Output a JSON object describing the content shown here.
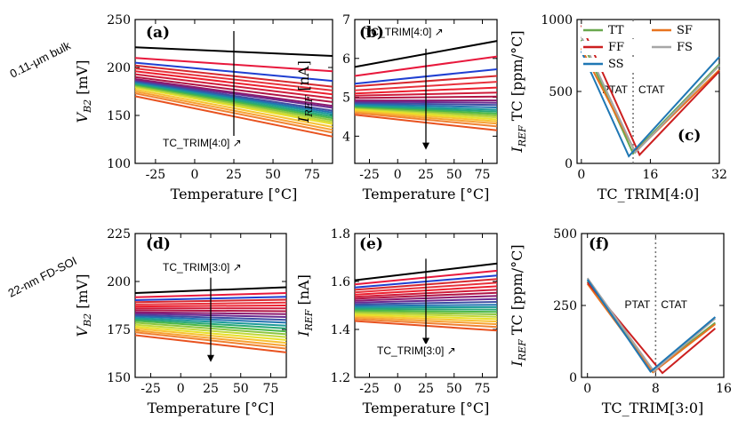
{
  "row_labels": [
    "0.11-μm bulk",
    "22-nm FD-SOI"
  ],
  "series_colors": [
    "#e8521f",
    "#f08232",
    "#f7a234",
    "#f7c232",
    "#e8e02a",
    "#c2d83a",
    "#8dc63f",
    "#4db848",
    "#2aa876",
    "#1d9a9a",
    "#2274b0",
    "#3f4fa3",
    "#6a2c91",
    "#8b1a6e",
    "#b01545",
    "#cf1c3a",
    "#ec1f2e",
    "#e8323c",
    "#d6292f",
    "#1f3fd1",
    "#e8183c",
    "#000000"
  ],
  "chart_data": [
    {
      "id": "a",
      "type": "line",
      "label": "(a)",
      "xlabel": "Temperature [°C]",
      "ylabel": "V_B2 [mV]",
      "ylabel_main": "V",
      "ylabel_sub": "B2",
      "ylabel_unit": " [mV]",
      "xlim": [
        -38,
        88
      ],
      "ylim": [
        100,
        250
      ],
      "xticks": [
        -25,
        0,
        25,
        50,
        75
      ],
      "xtick_labels": [
        "-25",
        "0",
        "25",
        "50",
        "75"
      ],
      "yticks": [
        100,
        150,
        200,
        250
      ],
      "ytick_labels": [
        "100",
        "150",
        "200",
        "250"
      ],
      "x": [
        -38,
        88
      ],
      "series": [
        {
          "name": "c0",
          "values": [
            170,
            128
          ]
        },
        {
          "name": "c1",
          "values": [
            173,
            132
          ]
        },
        {
          "name": "c2",
          "values": [
            175,
            135
          ]
        },
        {
          "name": "c3",
          "values": [
            177,
            138
          ]
        },
        {
          "name": "c4",
          "values": [
            179,
            141
          ]
        },
        {
          "name": "c5",
          "values": [
            180,
            143
          ]
        },
        {
          "name": "c6",
          "values": [
            181,
            145
          ]
        },
        {
          "name": "c7",
          "values": [
            182,
            147
          ]
        },
        {
          "name": "c8",
          "values": [
            183,
            149
          ]
        },
        {
          "name": "c9",
          "values": [
            184,
            151
          ]
        },
        {
          "name": "c10",
          "values": [
            185,
            153
          ]
        },
        {
          "name": "c11",
          "values": [
            186,
            155
          ]
        },
        {
          "name": "c12",
          "values": [
            187,
            158
          ]
        },
        {
          "name": "c13",
          "values": [
            188,
            160
          ]
        },
        {
          "name": "c14",
          "values": [
            190,
            164
          ]
        },
        {
          "name": "c15",
          "values": [
            193,
            168
          ]
        },
        {
          "name": "c16",
          "values": [
            196,
            172
          ]
        },
        {
          "name": "c17",
          "values": [
            199,
            176
          ]
        },
        {
          "name": "c18",
          "values": [
            202,
            180
          ]
        },
        {
          "name": "c19",
          "values": [
            205,
            186
          ]
        },
        {
          "name": "c20",
          "values": [
            210,
            196
          ]
        },
        {
          "name": "c21",
          "values": [
            221,
            212
          ]
        }
      ],
      "annotation": "TC_TRIM[4:0] ↗",
      "arrow": {
        "x": 25,
        "y_from": 238,
        "y_to": 118
      }
    },
    {
      "id": "b",
      "type": "line",
      "label": "(b)",
      "xlabel": "Temperature [°C]",
      "ylabel": "I_REF [nA]",
      "ylabel_main": "I",
      "ylabel_sub": "REF",
      "ylabel_unit": " [nA]",
      "xlim": [
        -38,
        88
      ],
      "ylim": [
        3.3,
        7.0
      ],
      "xticks": [
        -25,
        0,
        25,
        50,
        75
      ],
      "xtick_labels": [
        "-25",
        "0",
        "25",
        "50",
        "75"
      ],
      "yticks": [
        4,
        5,
        6,
        7
      ],
      "ytick_labels": [
        "4",
        "5",
        "6",
        "7"
      ],
      "x": [
        -38,
        88
      ],
      "series": [
        {
          "name": "c0",
          "values": [
            4.55,
            4.15
          ]
        },
        {
          "name": "c1",
          "values": [
            4.6,
            4.25
          ]
        },
        {
          "name": "c2",
          "values": [
            4.63,
            4.32
          ]
        },
        {
          "name": "c3",
          "values": [
            4.66,
            4.38
          ]
        },
        {
          "name": "c4",
          "values": [
            4.69,
            4.43
          ]
        },
        {
          "name": "c5",
          "values": [
            4.72,
            4.48
          ]
        },
        {
          "name": "c6",
          "values": [
            4.74,
            4.53
          ]
        },
        {
          "name": "c7",
          "values": [
            4.76,
            4.58
          ]
        },
        {
          "name": "c8",
          "values": [
            4.78,
            4.63
          ]
        },
        {
          "name": "c9",
          "values": [
            4.8,
            4.68
          ]
        },
        {
          "name": "c10",
          "values": [
            4.83,
            4.74
          ]
        },
        {
          "name": "c11",
          "values": [
            4.86,
            4.8
          ]
        },
        {
          "name": "c12",
          "values": [
            4.89,
            4.86
          ]
        },
        {
          "name": "c13",
          "values": [
            4.92,
            4.92
          ]
        },
        {
          "name": "c14",
          "values": [
            4.98,
            5.02
          ]
        },
        {
          "name": "c15",
          "values": [
            5.04,
            5.12
          ]
        },
        {
          "name": "c16",
          "values": [
            5.1,
            5.25
          ]
        },
        {
          "name": "c17",
          "values": [
            5.18,
            5.4
          ]
        },
        {
          "name": "c18",
          "values": [
            5.28,
            5.55
          ]
        },
        {
          "name": "c19",
          "values": [
            5.35,
            5.72
          ]
        },
        {
          "name": "c20",
          "values": [
            5.55,
            6.05
          ]
        },
        {
          "name": "c21",
          "values": [
            5.78,
            6.45
          ]
        }
      ],
      "annotation": "TC_TRIM[4:0] ↗",
      "arrow": {
        "x": 25,
        "y_from": 6.25,
        "y_to": 3.65
      }
    },
    {
      "id": "c",
      "type": "line",
      "label": "(c)",
      "xlabel": "TC_TRIM[4:0]",
      "ylabel": "I_REF TC [ppm/°C]",
      "ylabel_main": "I",
      "ylabel_sub": "REF",
      "ylabel_unit": " TC [ppm/°C]",
      "xlim": [
        -1,
        32
      ],
      "ylim": [
        0,
        1000
      ],
      "xticks": [
        0,
        16,
        32
      ],
      "xtick_labels": [
        "0",
        "16",
        "32"
      ],
      "yticks": [
        0,
        500,
        1000
      ],
      "ytick_labels": [
        "0",
        "500",
        "1000"
      ],
      "divider_x": 12,
      "region_left": "PTAT",
      "region_right": "CTAT",
      "legend": [
        {
          "name": "TT",
          "color": "#6aa84f"
        },
        {
          "name": "SF",
          "color": "#e8731f"
        },
        {
          "name": "FF",
          "color": "#cc1f1f"
        },
        {
          "name": "FS",
          "color": "#a6a6a6"
        },
        {
          "name": "SS",
          "color": "#1f77b4"
        }
      ],
      "series": [
        {
          "name": "TT",
          "color": "#6aa84f",
          "x": [
            0,
            12,
            32
          ],
          "values": [
            860,
            70,
            690
          ]
        },
        {
          "name": "SF",
          "color": "#e8731f",
          "x": [
            0,
            12.5,
            32
          ],
          "values": [
            800,
            80,
            650
          ]
        },
        {
          "name": "FF",
          "color": "#cc1f1f",
          "x": [
            0,
            13.5,
            32
          ],
          "values": [
            960,
            60,
            640
          ]
        },
        {
          "name": "FS",
          "color": "#a6a6a6",
          "x": [
            0,
            12.5,
            32
          ],
          "values": [
            880,
            75,
            680
          ]
        },
        {
          "name": "SS",
          "color": "#1f77b4",
          "x": [
            0,
            11,
            32
          ],
          "values": [
            780,
            50,
            740
          ]
        }
      ]
    },
    {
      "id": "d",
      "type": "line",
      "label": "(d)",
      "xlabel": "Temperature [°C]",
      "ylabel": "V_B2 [mV]",
      "ylabel_main": "V",
      "ylabel_sub": "B2",
      "ylabel_unit": " [mV]",
      "xlim": [
        -38,
        88
      ],
      "ylim": [
        150,
        225
      ],
      "xticks": [
        -25,
        0,
        25,
        50,
        75
      ],
      "xtick_labels": [
        "-25",
        "0",
        "25",
        "50",
        "75"
      ],
      "yticks": [
        150,
        175,
        200,
        225
      ],
      "ytick_labels": [
        "150",
        "175",
        "200",
        "225"
      ],
      "x": [
        -38,
        88
      ],
      "series": [
        {
          "name": "c0",
          "values": [
            172,
            163
          ]
        },
        {
          "name": "c1",
          "values": [
            173.5,
            165
          ]
        },
        {
          "name": "c2",
          "values": [
            174.5,
            166.5
          ]
        },
        {
          "name": "c3",
          "values": [
            175.5,
            168
          ]
        },
        {
          "name": "c4",
          "values": [
            176.5,
            169.5
          ]
        },
        {
          "name": "c5",
          "values": [
            177.5,
            171
          ]
        },
        {
          "name": "c6",
          "values": [
            178.5,
            172.5
          ]
        },
        {
          "name": "c7",
          "values": [
            179.5,
            174
          ]
        },
        {
          "name": "c8",
          "values": [
            180.3,
            175.5
          ]
        },
        {
          "name": "c9",
          "values": [
            181,
            177
          ]
        },
        {
          "name": "c10",
          "values": [
            181.8,
            178.5
          ]
        },
        {
          "name": "c11",
          "values": [
            182.5,
            180
          ]
        },
        {
          "name": "c12",
          "values": [
            183.3,
            181.5
          ]
        },
        {
          "name": "c13",
          "values": [
            184,
            183
          ]
        },
        {
          "name": "c14",
          "values": [
            185,
            184.5
          ]
        },
        {
          "name": "c15",
          "values": [
            186,
            186
          ]
        },
        {
          "name": "c16",
          "values": [
            187,
            187.5
          ]
        },
        {
          "name": "c17",
          "values": [
            188,
            189
          ]
        },
        {
          "name": "c18",
          "values": [
            189.2,
            190.5
          ]
        },
        {
          "name": "c19",
          "values": [
            190.3,
            192
          ]
        },
        {
          "name": "c20",
          "values": [
            191.8,
            194
          ]
        },
        {
          "name": "c21",
          "values": [
            194,
            197
          ]
        }
      ],
      "annotation": "TC_TRIM[3:0] ↗",
      "arrow": {
        "x": 25,
        "y_from": 202,
        "y_to": 158
      }
    },
    {
      "id": "e",
      "type": "line",
      "label": "(e)",
      "xlabel": "Temperature [°C]",
      "ylabel": "I_REF [nA]",
      "ylabel_main": "I",
      "ylabel_sub": "REF",
      "ylabel_unit": " [nA]",
      "xlim": [
        -38,
        88
      ],
      "ylim": [
        1.2,
        1.8
      ],
      "xticks": [
        -25,
        0,
        25,
        50,
        75
      ],
      "xtick_labels": [
        "-25",
        "0",
        "25",
        "50",
        "75"
      ],
      "yticks": [
        1.2,
        1.4,
        1.6,
        1.8
      ],
      "ytick_labels": [
        "1.2",
        "1.4",
        "1.6",
        "1.8"
      ],
      "x": [
        -38,
        88
      ],
      "series": [
        {
          "name": "c0",
          "values": [
            1.435,
            1.395
          ]
        },
        {
          "name": "c1",
          "values": [
            1.443,
            1.41
          ]
        },
        {
          "name": "c2",
          "values": [
            1.45,
            1.422
          ]
        },
        {
          "name": "c3",
          "values": [
            1.456,
            1.433
          ]
        },
        {
          "name": "c4",
          "values": [
            1.462,
            1.443
          ]
        },
        {
          "name": "c5",
          "values": [
            1.468,
            1.453
          ]
        },
        {
          "name": "c6",
          "values": [
            1.474,
            1.463
          ]
        },
        {
          "name": "c7",
          "values": [
            1.48,
            1.473
          ]
        },
        {
          "name": "c8",
          "values": [
            1.486,
            1.483
          ]
        },
        {
          "name": "c9",
          "values": [
            1.492,
            1.493
          ]
        },
        {
          "name": "c10",
          "values": [
            1.498,
            1.503
          ]
        },
        {
          "name": "c11",
          "values": [
            1.505,
            1.515
          ]
        },
        {
          "name": "c12",
          "values": [
            1.512,
            1.527
          ]
        },
        {
          "name": "c13",
          "values": [
            1.52,
            1.54
          ]
        },
        {
          "name": "c14",
          "values": [
            1.528,
            1.553
          ]
        },
        {
          "name": "c15",
          "values": [
            1.536,
            1.566
          ]
        },
        {
          "name": "c16",
          "values": [
            1.545,
            1.58
          ]
        },
        {
          "name": "c17",
          "values": [
            1.555,
            1.595
          ]
        },
        {
          "name": "c18",
          "values": [
            1.565,
            1.61
          ]
        },
        {
          "name": "c19",
          "values": [
            1.575,
            1.625
          ]
        },
        {
          "name": "c20",
          "values": [
            1.588,
            1.645
          ]
        },
        {
          "name": "c21",
          "values": [
            1.605,
            1.675
          ]
        }
      ],
      "annotation": "TC_TRIM[3:0] ↗",
      "arrow": {
        "x": 25,
        "y_from": 1.695,
        "y_to": 1.335
      }
    },
    {
      "id": "f",
      "type": "line",
      "label": "(f)",
      "xlabel": "TC_TRIM[3:0]",
      "ylabel": "I_REF TC [ppm/°C]",
      "ylabel_main": "I",
      "ylabel_sub": "REF",
      "ylabel_unit": " TC [ppm/°C]",
      "xlim": [
        -0.7,
        16
      ],
      "ylim": [
        0,
        500
      ],
      "xticks": [
        0,
        8,
        16
      ],
      "xtick_labels": [
        "0",
        "8",
        "16"
      ],
      "yticks": [
        0,
        250,
        500
      ],
      "ytick_labels": [
        "0",
        "250",
        "500"
      ],
      "divider_x": 8,
      "region_left": "PTAT",
      "region_right": "CTAT",
      "series": [
        {
          "name": "TT",
          "color": "#6aa84f",
          "x": [
            0,
            7.6,
            15
          ],
          "values": [
            335,
            20,
            190
          ]
        },
        {
          "name": "SF",
          "color": "#e8731f",
          "x": [
            0,
            7.7,
            15
          ],
          "values": [
            325,
            18,
            185
          ]
        },
        {
          "name": "FF",
          "color": "#cc1f1f",
          "x": [
            0,
            8.8,
            15
          ],
          "values": [
            330,
            15,
            170
          ]
        },
        {
          "name": "FS",
          "color": "#a6a6a6",
          "x": [
            0,
            7.8,
            15
          ],
          "values": [
            345,
            22,
            205
          ]
        },
        {
          "name": "SS",
          "color": "#1f77b4",
          "x": [
            0,
            7.4,
            15
          ],
          "values": [
            340,
            20,
            210
          ]
        }
      ]
    }
  ]
}
